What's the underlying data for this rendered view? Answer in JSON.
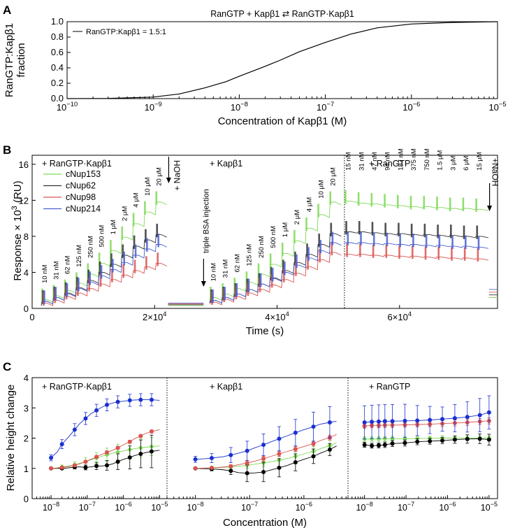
{
  "panels": {
    "a": {
      "letter": "A"
    },
    "b": {
      "letter": "B"
    },
    "c": {
      "letter": "C"
    }
  },
  "chart_data": [
    {
      "panel": "A",
      "type": "line",
      "title": "RanGTP + Kapβ1 ⇄ RanGTP·Kapβ1",
      "xlabel": "Concentration of Kapβ1 (M)",
      "ylabel_lines": [
        "RanGTP:Kapβ1",
        "fraction"
      ],
      "x_scale": "log",
      "xlim": [
        1e-10,
        1e-05
      ],
      "ylim": [
        0,
        1
      ],
      "x_ticks": [
        1e-10,
        1e-09,
        1e-08,
        1e-07,
        1e-06,
        1e-05
      ],
      "x_tick_labels": [
        [
          "10",
          "−10"
        ],
        [
          "10",
          "−9"
        ],
        [
          "10",
          "−8"
        ],
        [
          "10",
          "−7"
        ],
        [
          "10",
          "−6"
        ],
        [
          "10",
          "−5"
        ]
      ],
      "y_ticks": [
        0,
        0.2,
        0.4,
        0.6,
        0.8,
        1.0
      ],
      "y_tick_labels": [
        "0.0",
        "0.2",
        "0.4",
        "0.6",
        "0.8",
        "1.0"
      ],
      "series": [
        {
          "name": "RanGTP:Kapβ1 = 1.5:1",
          "color": "#000000",
          "x": [
            1e-10,
            3e-10,
            1e-09,
            2e-09,
            4e-09,
            7e-09,
            1e-08,
            2e-08,
            3e-08,
            5e-08,
            1e-07,
            2e-07,
            4e-07,
            1e-06,
            3e-06,
            1e-05
          ],
          "y": [
            0.0,
            0.003,
            0.02,
            0.06,
            0.14,
            0.22,
            0.29,
            0.42,
            0.5,
            0.61,
            0.73,
            0.84,
            0.92,
            0.97,
            0.99,
            1.0
          ]
        }
      ],
      "legend": "top-left"
    },
    {
      "panel": "B",
      "type": "line",
      "xlabel": "Time (s)",
      "ylabel": "Response × 10³ (RU)",
      "xlim": [
        0,
        76000
      ],
      "ylim": [
        0,
        17
      ],
      "x_ticks": [
        0,
        20000,
        40000,
        60000
      ],
      "x_tick_labels": [
        [
          "0",
          ""
        ],
        [
          "2×10",
          "4"
        ],
        [
          "4×10",
          "4"
        ],
        [
          "6×10",
          "4"
        ]
      ],
      "y_ticks": [
        0,
        4,
        8,
        12,
        16
      ],
      "y_tick_labels": [
        "0",
        "4",
        "8",
        "12",
        "16"
      ],
      "section_labels": [
        "+ RanGTP·Kapβ1",
        "+ Kapβ1",
        "+ RanGTP"
      ],
      "section_divider_x": 51000,
      "arrow_labels": [
        "+ NaOH",
        "triple BSA injection",
        "+NaOH"
      ],
      "conc_labels_1": [
        "10 nM",
        "31 nM",
        "62 nM",
        "125 nM",
        "250 nM",
        "500 nM",
        "1 μM",
        "2 μM",
        "4 μM",
        "10 μM",
        "20 μM"
      ],
      "conc_labels_2": [
        "10 nM",
        "31 nM",
        "62 nM",
        "125 nM",
        "250 nM",
        "500 nM",
        "1 μM",
        "2 μM",
        "4 μM",
        "10 μM",
        "20 μM"
      ],
      "conc_labels_3": [
        "15 nM",
        "31 nM",
        "47 nM",
        "94 nM",
        "187 nM",
        "375 nM",
        "750 nM",
        "1.5 μM",
        "3 μM",
        "6 μM",
        "15 μM"
      ],
      "series": [
        {
          "name": "cNup153",
          "color": "#7ed957",
          "seg1": [
            1.0,
            1.4,
            2.0,
            2.8,
            3.8,
            5.0,
            6.4,
            7.9,
            9.4,
            10.7,
            11.8
          ],
          "seg2": [
            1.2,
            1.6,
            2.2,
            2.9,
            3.8,
            4.9,
            6.1,
            7.5,
            8.9,
            10.4,
            11.8
          ],
          "seg3": [
            11.9,
            11.7,
            11.6,
            11.5,
            11.4,
            11.3,
            11.3,
            11.2,
            11.1,
            11.1,
            11.0
          ]
        },
        {
          "name": "cNup62",
          "color": "#333333",
          "seg1": [
            0.8,
            1.2,
            1.7,
            2.3,
            3.1,
            4.0,
            4.9,
            5.9,
            6.9,
            7.6,
            8.2
          ],
          "seg2": [
            0.9,
            1.2,
            1.6,
            2.1,
            2.7,
            3.4,
            4.2,
            5.1,
            6.0,
            7.1,
            8.3
          ],
          "seg3": [
            8.5,
            8.5,
            8.4,
            8.3,
            8.3,
            8.2,
            8.2,
            8.1,
            8.1,
            8.0,
            8.0
          ]
        },
        {
          "name": "cNup98",
          "color": "#d9534f",
          "seg1": [
            0.6,
            0.9,
            1.3,
            1.7,
            2.2,
            2.7,
            3.2,
            3.7,
            4.2,
            4.6,
            5.0
          ],
          "seg2": [
            0.7,
            1.0,
            1.3,
            1.7,
            2.1,
            2.6,
            3.2,
            3.9,
            4.6,
            5.4,
            6.2
          ],
          "seg3": [
            6.0,
            6.0,
            5.9,
            5.9,
            5.8,
            5.8,
            5.7,
            5.7,
            5.6,
            5.6,
            5.5
          ]
        },
        {
          "name": "cNup214",
          "color": "#4a5fd0",
          "seg1": [
            0.8,
            1.2,
            1.6,
            2.2,
            2.9,
            3.6,
            4.3,
            5.1,
            5.9,
            6.6,
            7.1
          ],
          "seg2": [
            0.9,
            1.2,
            1.6,
            2.1,
            2.7,
            3.3,
            4.0,
            4.8,
            5.6,
            6.4,
            7.3
          ],
          "seg3": [
            7.3,
            7.3,
            7.2,
            7.2,
            7.1,
            7.1,
            7.0,
            7.0,
            6.9,
            6.9,
            6.8
          ]
        }
      ],
      "legend": "top-left"
    },
    {
      "panel": "C",
      "type": "scatter",
      "xlabel": "Concentration (M)",
      "ylabel": "Relative height change",
      "ylim": [
        0,
        4
      ],
      "y_ticks": [
        0,
        1,
        2,
        3,
        4
      ],
      "y_tick_labels": [
        "0",
        "1",
        "2",
        "3",
        "4"
      ],
      "x_scale": "log",
      "section_labels": [
        "+ RanGTP·Kapβ1",
        "+ Kapβ1",
        "+ RanGTP"
      ],
      "sub_panels": [
        {
          "xlim": [
            3e-09,
            1.6e-05
          ],
          "x_ticks": [
            1e-08,
            1e-07,
            1e-06,
            1e-05
          ],
          "x_tick_labels": [
            [
              "10",
              "−8"
            ],
            [
              "10",
              "−7"
            ],
            [
              "10",
              "−6"
            ],
            [
              "10",
              "−5"
            ]
          ],
          "x": [
            1e-08,
            1.5e-08,
            2e-08,
            3.1e-08,
            4.5e-08,
            6.2e-08,
            9e-08,
            1.25e-07,
            1.8e-07,
            2.5e-07,
            3.5e-07,
            5e-07,
            7e-07,
            1e-06,
            1.5e-06,
            2e-06,
            3e-06,
            4e-06,
            6e-06,
            1e-05
          ]
        },
        {
          "xlim": [
            3e-09,
            6.5e-06
          ],
          "x_ticks": [
            1e-08,
            1e-07,
            1e-06
          ],
          "x_tick_labels": [
            [
              "10",
              "−8"
            ],
            [
              "10",
              "−7"
            ],
            [
              "10",
              "−6"
            ]
          ],
          "x": [
            1e-08,
            1.5e-08,
            2e-08,
            3.1e-08,
            4.5e-08,
            6.2e-08,
            9e-08,
            1.25e-07,
            1.8e-07,
            2.5e-07,
            3.5e-07,
            5e-07,
            7e-07,
            1e-06,
            1.5e-06,
            2e-06,
            3e-06,
            4e-06
          ]
        },
        {
          "xlim": [
            4e-09,
            1.6e-05
          ],
          "x_ticks": [
            1e-08,
            1e-07,
            1e-06,
            1e-05
          ],
          "x_tick_labels": [
            [
              "10",
              "−8"
            ],
            [
              "10",
              "−7"
            ],
            [
              "10",
              "−6"
            ],
            [
              "10",
              "−5"
            ]
          ],
          "x": [
            1e-08,
            1.5e-08,
            2.2e-08,
            3.1e-08,
            4.7e-08,
            9.4e-08,
            1.87e-07,
            3.75e-07,
            7.5e-07,
            1.5e-06,
            3e-06,
            6e-06,
            1e-05
          ]
        }
      ],
      "series": [
        {
          "name": "cNup153",
          "color": "#7ed957",
          "marker": "diamond",
          "y": [
            [
              1.0,
              1.02,
              1.05,
              1.08,
              1.12,
              1.17,
              1.22,
              1.28,
              1.34,
              1.4,
              1.45,
              1.5,
              1.54,
              1.58,
              1.62,
              1.65,
              1.68,
              1.7,
              1.72,
              1.74
            ],
            [
              1.0,
              1.01,
              1.02,
              1.03,
              1.05,
              1.07,
              1.1,
              1.14,
              1.18,
              1.22,
              1.27,
              1.33,
              1.4,
              1.48,
              1.56,
              1.65,
              1.75,
              1.85
            ],
            [
              1.97,
              1.97,
              1.97,
              1.98,
              1.98,
              1.98,
              1.99,
              1.99,
              2.0,
              2.0,
              2.0,
              2.0,
              2.0
            ]
          ],
          "err": [
            [
              0.03,
              0.04,
              0.06,
              0.08,
              0.1,
              0.12,
              0.14,
              0.16,
              0.18,
              0.2,
              0.22,
              0.24,
              0.26,
              0.28,
              0.3,
              0.3,
              0.3,
              0.3,
              0.3,
              0.3
            ],
            [
              0.03,
              0.04,
              0.05,
              0.06,
              0.07,
              0.08,
              0.09,
              0.1,
              0.11,
              0.12,
              0.13,
              0.14,
              0.15,
              0.16,
              0.17,
              0.18,
              0.18,
              0.18
            ],
            [
              0.08,
              0.08,
              0.08,
              0.08,
              0.08,
              0.08,
              0.08,
              0.08,
              0.08,
              0.08,
              0.08,
              0.08,
              0.08
            ]
          ]
        },
        {
          "name": "cNup62",
          "color": "#000000",
          "marker": "circle",
          "y": [
            [
              1.0,
              1.0,
              1.0,
              1.02,
              1.04,
              1.05,
              1.03,
              1.05,
              1.08,
              1.08,
              1.1,
              1.15,
              1.22,
              1.3,
              1.36,
              1.42,
              1.48,
              1.52,
              1.56,
              1.6
            ],
            [
              1.0,
              0.99,
              0.98,
              0.96,
              0.92,
              0.86,
              0.84,
              0.85,
              0.88,
              0.95,
              1.02,
              1.1,
              1.2,
              1.3,
              1.4,
              1.5,
              1.62,
              1.74
            ],
            [
              1.78,
              1.75,
              1.76,
              1.78,
              1.82,
              1.84,
              1.88,
              1.9,
              1.92,
              1.95,
              1.97,
              1.98,
              1.95
            ]
          ],
          "err": [
            [
              0.03,
              0.03,
              0.04,
              0.05,
              0.06,
              0.07,
              0.08,
              0.1,
              0.12,
              0.14,
              0.16,
              0.2,
              0.26,
              0.32,
              0.38,
              0.42,
              0.46,
              0.5,
              0.54,
              0.56
            ],
            [
              0.03,
              0.04,
              0.06,
              0.08,
              0.12,
              0.22,
              0.28,
              0.3,
              0.32,
              0.32,
              0.3,
              0.3,
              0.28,
              0.26,
              0.24,
              0.22,
              0.2,
              0.18
            ],
            [
              0.08,
              0.08,
              0.08,
              0.09,
              0.1,
              0.1,
              0.1,
              0.1,
              0.1,
              0.12,
              0.14,
              0.16,
              0.18
            ]
          ]
        },
        {
          "name": "cNup98",
          "color": "#d9534f",
          "marker": "circle",
          "y": [
            [
              1.0,
              1.01,
              1.03,
              1.06,
              1.1,
              1.15,
              1.22,
              1.3,
              1.38,
              1.46,
              1.53,
              1.6,
              1.68,
              1.78,
              1.88,
              1.98,
              2.07,
              2.15,
              2.22,
              2.28
            ],
            [
              1.0,
              1.01,
              1.02,
              1.04,
              1.07,
              1.12,
              1.18,
              1.24,
              1.32,
              1.4,
              1.48,
              1.56,
              1.64,
              1.72,
              1.82,
              1.92,
              2.02,
              2.12
            ],
            [
              2.4,
              2.42,
              2.42,
              2.43,
              2.43,
              2.44,
              2.45,
              2.46,
              2.48,
              2.5,
              2.52,
              2.55,
              2.57
            ]
          ],
          "err": [
            [
              0.02,
              0.02,
              0.03,
              0.03,
              0.04,
              0.04,
              0.04,
              0.05,
              0.05,
              0.05,
              0.05,
              0.05,
              0.05,
              0.05,
              0.05,
              0.05,
              0.05,
              0.05,
              0.05,
              0.05
            ],
            [
              0.02,
              0.02,
              0.03,
              0.03,
              0.04,
              0.06,
              0.08,
              0.08,
              0.08,
              0.08,
              0.08,
              0.08,
              0.08,
              0.08,
              0.08,
              0.08,
              0.08,
              0.08
            ],
            [
              0.08,
              0.08,
              0.08,
              0.08,
              0.08,
              0.08,
              0.08,
              0.08,
              0.1,
              0.1,
              0.1,
              0.1,
              0.1
            ]
          ]
        },
        {
          "name": "cNup214",
          "color": "#1a2fd0",
          "marker": "circle",
          "y": [
            [
              1.35,
              1.55,
              1.8,
              2.05,
              2.28,
              2.48,
              2.65,
              2.8,
              2.92,
              3.02,
              3.1,
              3.16,
              3.2,
              3.22,
              3.25,
              3.26,
              3.27,
              3.27,
              3.27,
              3.25
            ],
            [
              1.3,
              1.32,
              1.34,
              1.38,
              1.44,
              1.5,
              1.58,
              1.68,
              1.78,
              1.88,
              1.98,
              2.08,
              2.18,
              2.28,
              2.38,
              2.46,
              2.52,
              2.56
            ],
            [
              2.52,
              2.54,
              2.55,
              2.56,
              2.56,
              2.57,
              2.58,
              2.6,
              2.63,
              2.66,
              2.7,
              2.76,
              2.85
            ]
          ],
          "err": [
            [
              0.1,
              0.12,
              0.15,
              0.18,
              0.2,
              0.2,
              0.2,
              0.2,
              0.2,
              0.2,
              0.2,
              0.2,
              0.2,
              0.2,
              0.2,
              0.2,
              0.2,
              0.2,
              0.2,
              0.2
            ],
            [
              0.1,
              0.12,
              0.15,
              0.2,
              0.25,
              0.3,
              0.32,
              0.34,
              0.36,
              0.38,
              0.4,
              0.42,
              0.44,
              0.46,
              0.48,
              0.5,
              0.52,
              0.54
            ],
            [
              0.55,
              0.55,
              0.55,
              0.55,
              0.55,
              0.55,
              0.5,
              0.45,
              0.4,
              0.45,
              0.5,
              0.55,
              0.55
            ]
          ]
        }
      ]
    }
  ]
}
